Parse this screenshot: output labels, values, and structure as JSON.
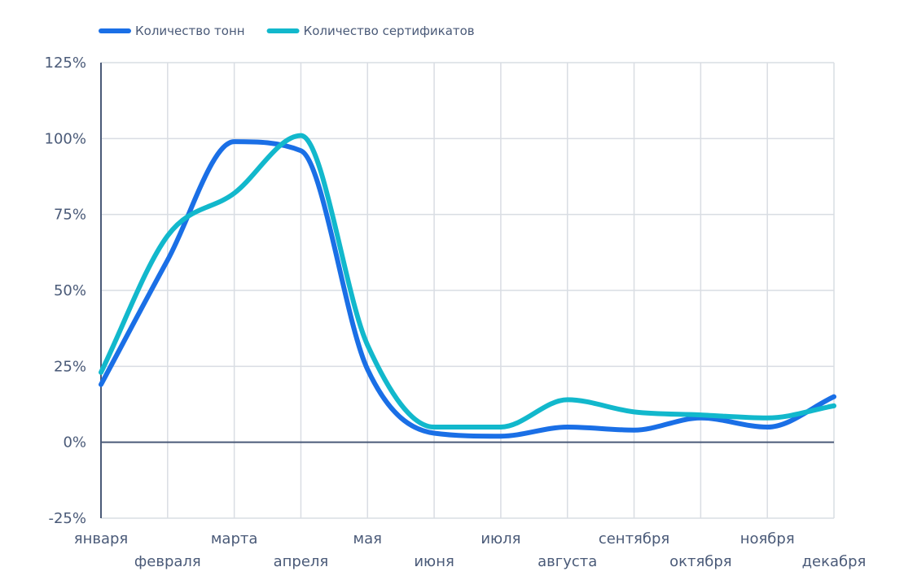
{
  "chart_data": {
    "type": "line",
    "categories": [
      "января",
      "февраля",
      "марта",
      "апреля",
      "мая",
      "июня",
      "июля",
      "августа",
      "сентября",
      "октября",
      "ноября",
      "декабря"
    ],
    "series": [
      {
        "name": "Количество тонн",
        "color": "#1a6fe6",
        "values": [
          19,
          60,
          99,
          96,
          24,
          3,
          2,
          5,
          4,
          8,
          5,
          15
        ]
      },
      {
        "name": "Количество сертификатов",
        "color": "#12b8cc",
        "values": [
          23,
          68,
          82,
          101,
          32,
          5,
          5,
          14,
          10,
          9,
          8,
          12
        ]
      }
    ],
    "y_ticks": [
      "125%",
      "100%",
      "75%",
      "50%",
      "25%",
      "0%",
      "-25%"
    ],
    "ylim": [
      -25,
      125
    ],
    "grid": true,
    "legend_position": "top-left",
    "colors": {
      "axis": "#4a5a78",
      "grid": "#d9dde3",
      "text": "#4a5a78"
    }
  }
}
